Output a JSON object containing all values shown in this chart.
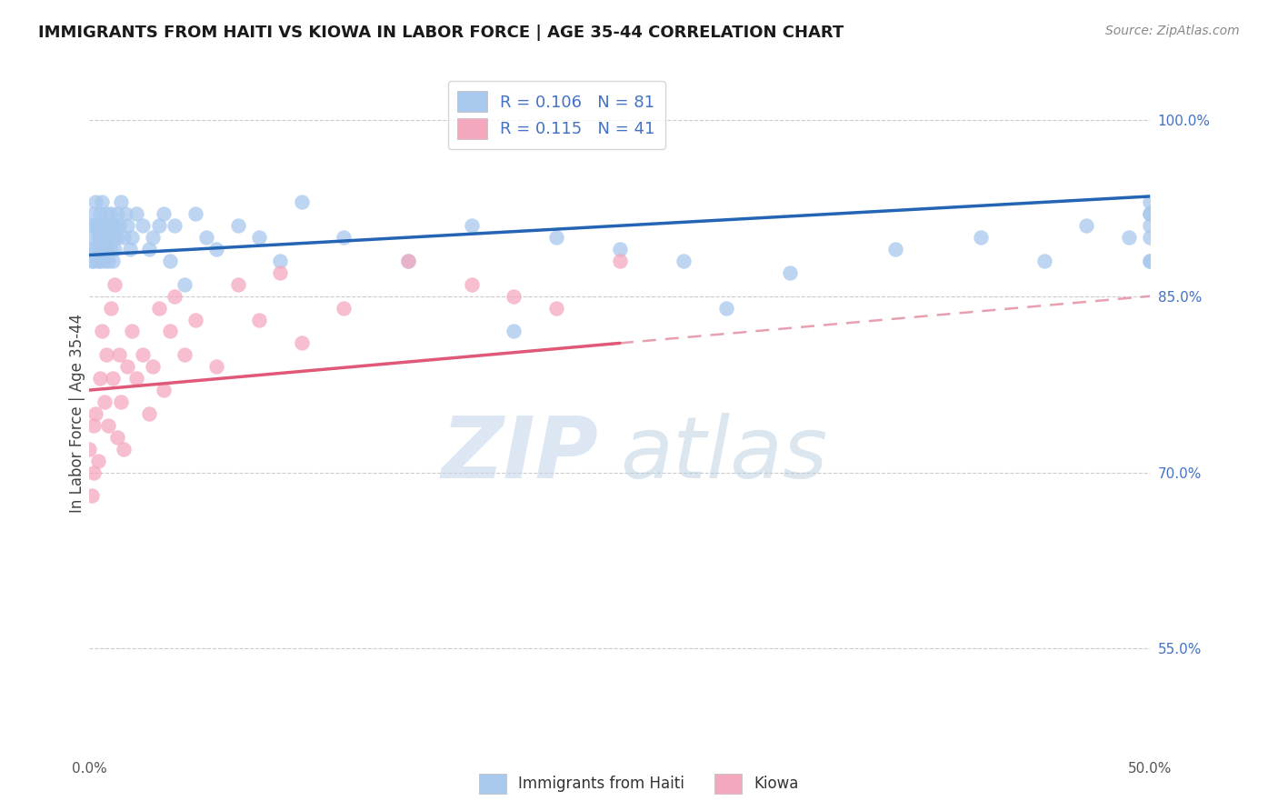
{
  "title": "IMMIGRANTS FROM HAITI VS KIOWA IN LABOR FORCE | AGE 35-44 CORRELATION CHART",
  "source": "Source: ZipAtlas.com",
  "ylabel": "In Labor Force | Age 35-44",
  "ytick_labels": [
    "55.0%",
    "70.0%",
    "85.0%",
    "100.0%"
  ],
  "ytick_values": [
    0.55,
    0.7,
    0.85,
    1.0
  ],
  "xmin": 0.0,
  "xmax": 0.5,
  "ymin": 0.46,
  "ymax": 1.04,
  "haiti_R": 0.106,
  "haiti_N": 81,
  "kiowa_R": 0.115,
  "kiowa_N": 41,
  "haiti_color": "#a8c8ee",
  "kiowa_color": "#f4a8be",
  "haiti_line_color": "#2464b4",
  "kiowa_line_color": "#e05878",
  "kiowa_dash_color": "#e8a0b0",
  "legend_text_color": "#4472c4",
  "haiti_x": [
    0.0,
    0.001,
    0.001,
    0.002,
    0.002,
    0.002,
    0.003,
    0.003,
    0.003,
    0.004,
    0.004,
    0.004,
    0.005,
    0.005,
    0.005,
    0.005,
    0.006,
    0.006,
    0.006,
    0.007,
    0.007,
    0.007,
    0.008,
    0.008,
    0.008,
    0.009,
    0.009,
    0.009,
    0.01,
    0.01,
    0.01,
    0.011,
    0.011,
    0.012,
    0.012,
    0.013,
    0.013,
    0.014,
    0.015,
    0.016,
    0.017,
    0.018,
    0.019,
    0.02,
    0.022,
    0.025,
    0.028,
    0.03,
    0.033,
    0.035,
    0.038,
    0.04,
    0.045,
    0.05,
    0.055,
    0.06,
    0.07,
    0.08,
    0.09,
    0.1,
    0.12,
    0.15,
    0.18,
    0.2,
    0.22,
    0.25,
    0.28,
    0.3,
    0.33,
    0.38,
    0.42,
    0.45,
    0.47,
    0.49,
    0.5,
    0.5,
    0.5,
    0.5,
    0.5,
    0.5,
    0.5
  ],
  "haiti_y": [
    0.89,
    0.88,
    0.91,
    0.9,
    0.88,
    0.92,
    0.89,
    0.91,
    0.93,
    0.88,
    0.9,
    0.91,
    0.89,
    0.92,
    0.88,
    0.9,
    0.91,
    0.89,
    0.93,
    0.9,
    0.88,
    0.91,
    0.92,
    0.89,
    0.9,
    0.91,
    0.88,
    0.9,
    0.89,
    0.92,
    0.91,
    0.9,
    0.88,
    0.91,
    0.89,
    0.92,
    0.9,
    0.91,
    0.93,
    0.9,
    0.92,
    0.91,
    0.89,
    0.9,
    0.92,
    0.91,
    0.89,
    0.9,
    0.91,
    0.92,
    0.88,
    0.91,
    0.86,
    0.92,
    0.9,
    0.89,
    0.91,
    0.9,
    0.88,
    0.93,
    0.9,
    0.88,
    0.91,
    0.82,
    0.9,
    0.89,
    0.88,
    0.84,
    0.87,
    0.89,
    0.9,
    0.88,
    0.91,
    0.9,
    0.88,
    0.92,
    0.9,
    0.91,
    0.93,
    0.88,
    0.92
  ],
  "kiowa_x": [
    0.0,
    0.001,
    0.002,
    0.002,
    0.003,
    0.004,
    0.005,
    0.006,
    0.007,
    0.008,
    0.009,
    0.01,
    0.011,
    0.012,
    0.013,
    0.014,
    0.015,
    0.016,
    0.018,
    0.02,
    0.022,
    0.025,
    0.028,
    0.03,
    0.033,
    0.035,
    0.038,
    0.04,
    0.045,
    0.05,
    0.06,
    0.07,
    0.08,
    0.09,
    0.1,
    0.12,
    0.15,
    0.18,
    0.2,
    0.22,
    0.25
  ],
  "kiowa_y": [
    0.72,
    0.68,
    0.74,
    0.7,
    0.75,
    0.71,
    0.78,
    0.82,
    0.76,
    0.8,
    0.74,
    0.84,
    0.78,
    0.86,
    0.73,
    0.8,
    0.76,
    0.72,
    0.79,
    0.82,
    0.78,
    0.8,
    0.75,
    0.79,
    0.84,
    0.77,
    0.82,
    0.85,
    0.8,
    0.83,
    0.79,
    0.86,
    0.83,
    0.87,
    0.81,
    0.84,
    0.88,
    0.86,
    0.85,
    0.84,
    0.88
  ],
  "kiowa_line_x0": 0.0,
  "kiowa_line_y0": 0.77,
  "kiowa_line_x1": 0.5,
  "kiowa_line_y1": 0.85,
  "haiti_line_x0": 0.0,
  "haiti_line_y0": 0.885,
  "haiti_line_x1": 0.5,
  "haiti_line_y1": 0.935
}
